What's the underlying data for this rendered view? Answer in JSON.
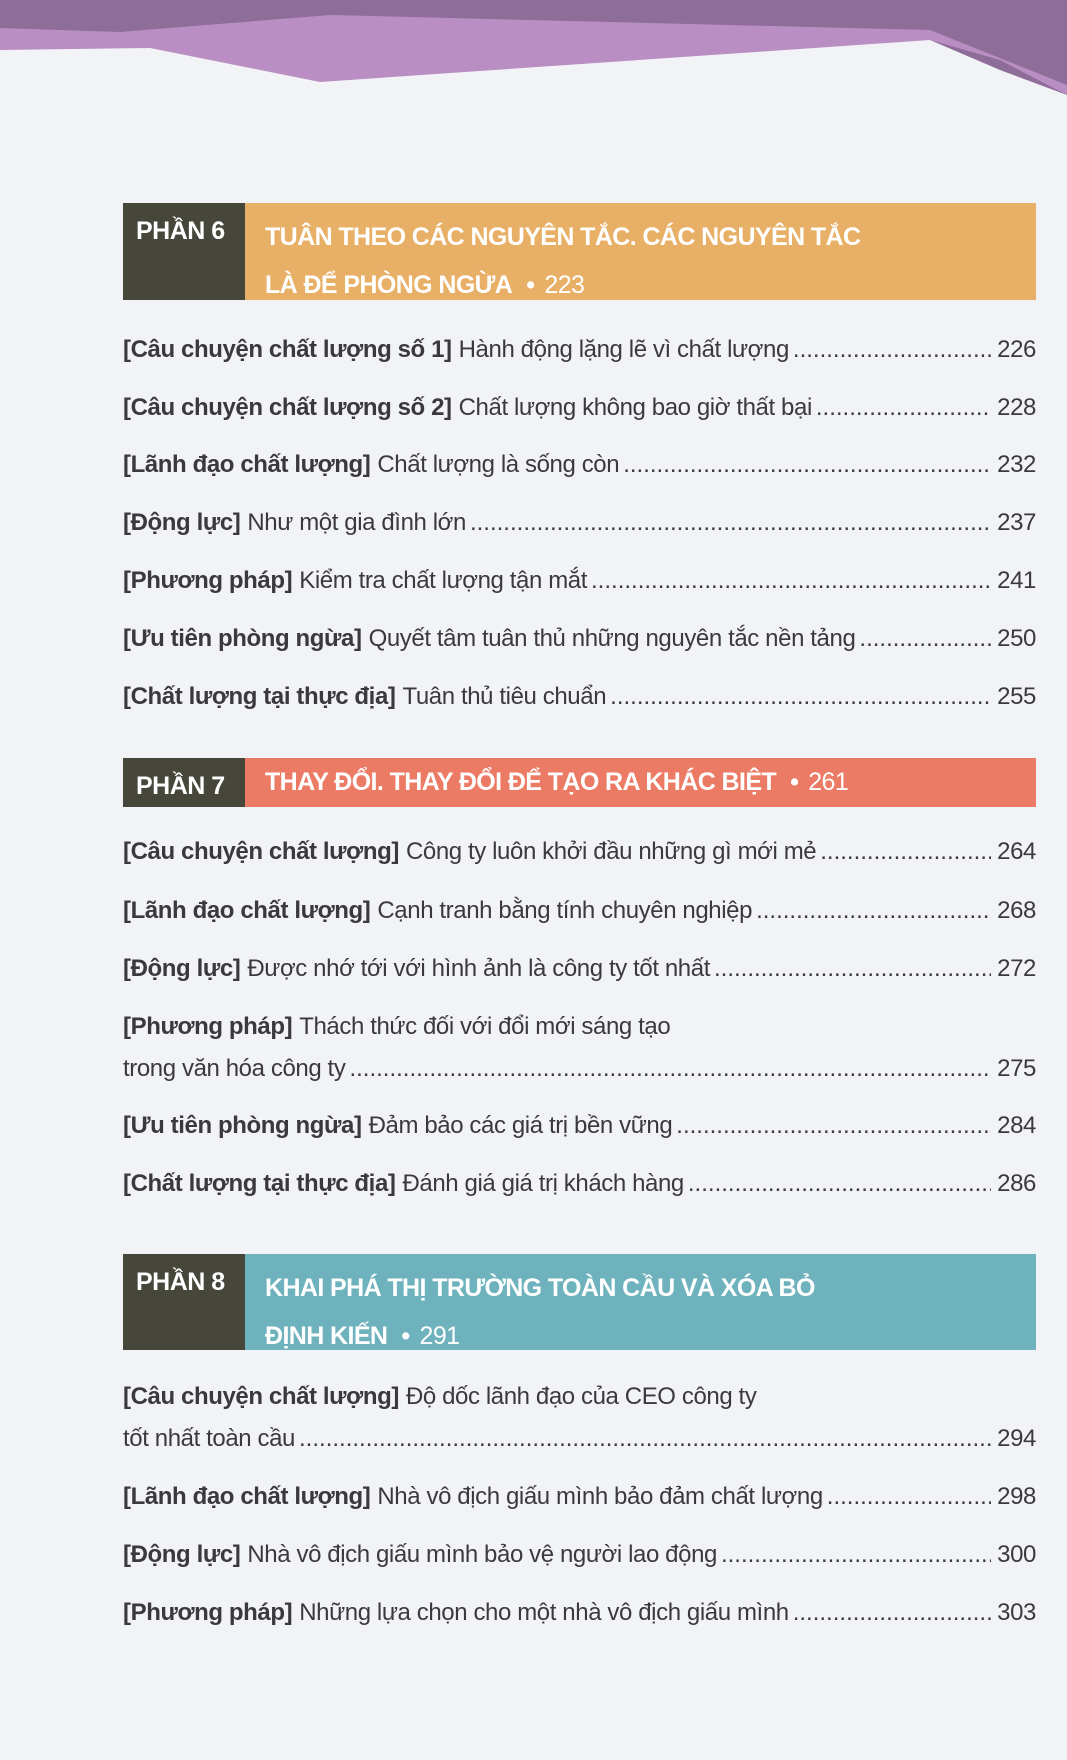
{
  "colors": {
    "dark": "#47463a",
    "section6": "#e8b066",
    "section7": "#ec7b65",
    "section8": "#6db2bc",
    "purple": "#b387bd"
  },
  "sections": [
    {
      "label": "PHẦN 6",
      "title_line1": "TUÂN THEO CÁC NGUYÊN TẮC. CÁC NGUYÊN TẮC",
      "title_line2": "LÀ ĐỂ PHÒNG NGỪA",
      "page": "223",
      "entries": [
        {
          "tag": "[Câu chuyện chất lượng số 1]",
          "title": "Hành động lặng lẽ vì chất lượng",
          "page": "226"
        },
        {
          "tag": "[Câu chuyện chất lượng số 2]",
          "title": "Chất lượng không bao giờ thất bại",
          "page": "228"
        },
        {
          "tag": "[Lãnh đạo chất lượng]",
          "title": "Chất lượng là sống còn",
          "page": "232"
        },
        {
          "tag": "[Động lực]",
          "title": "Như một gia đình lớn",
          "page": "237"
        },
        {
          "tag": "[Phương pháp]",
          "title": "Kiểm tra chất lượng tận mắt",
          "page": "241"
        },
        {
          "tag": "[Ưu tiên phòng ngừa]",
          "title": "Quyết tâm tuân thủ những nguyên tắc nền tảng",
          "page": "250"
        },
        {
          "tag": "[Chất lượng tại thực địa]",
          "title": "Tuân thủ tiêu chuẩn",
          "page": "255"
        }
      ]
    },
    {
      "label": "PHẦN 7",
      "title_line1": "THAY ĐỔI. THAY ĐỔI ĐỂ TẠO RA KHÁC BIỆT",
      "title_line2": "",
      "page": "261",
      "entries": [
        {
          "tag": "[Câu chuyện chất lượng]",
          "title": "Công ty luôn khởi đầu những gì mới mẻ",
          "page": "264"
        },
        {
          "tag": "[Lãnh đạo chất lượng]",
          "title": "Cạnh tranh bằng tính chuyên nghiệp",
          "page": "268"
        },
        {
          "tag": "[Động lực]",
          "title": "Được nhớ tới với hình ảnh là công ty tốt nhất",
          "page": "272"
        },
        {
          "tag": "[Phương pháp]",
          "title": "Thách thức đối với đổi mới sáng tạo",
          "title_cont": "trong văn hóa công ty",
          "page": "275"
        },
        {
          "tag": "[Ưu tiên phòng ngừa]",
          "title": "Đảm bảo các giá trị bền vững",
          "page": "284"
        },
        {
          "tag": "[Chất lượng tại thực địa]",
          "title": "Đánh giá giá trị khách hàng",
          "page": "286"
        }
      ]
    },
    {
      "label": "PHẦN 8",
      "title_line1": "KHAI PHÁ THỊ TRƯỜNG TOÀN CẦU VÀ XÓA BỎ",
      "title_line2": "ĐỊNH KIẾN",
      "page": "291",
      "entries": [
        {
          "tag": "[Câu chuyện chất lượng]",
          "title": "Độ dốc lãnh đạo của CEO công ty",
          "title_cont": "tốt nhất toàn cầu",
          "page": "294"
        },
        {
          "tag": "[Lãnh đạo chất lượng]",
          "title": "Nhà vô địch giấu mình bảo đảm chất lượng",
          "page": "298"
        },
        {
          "tag": "[Động lực]",
          "title": "Nhà vô địch giấu mình bảo vệ người lao động",
          "page": "300"
        },
        {
          "tag": "[Phương pháp]",
          "title": "Những lựa chọn cho một nhà vô địch giấu mình",
          "page": "303"
        }
      ]
    }
  ]
}
